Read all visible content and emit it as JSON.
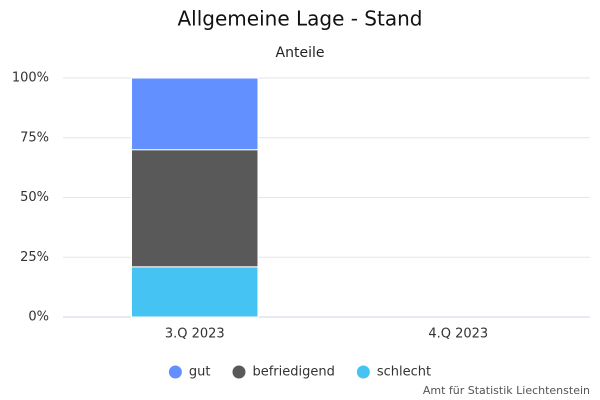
{
  "chart_data": {
    "type": "stacked_bar",
    "title": "Allgemeine Lage - Stand",
    "subtitle": "Anteile",
    "categories": [
      "3.Q 2023",
      "4.Q 2023"
    ],
    "series": [
      {
        "name": "gut",
        "color": "#6291ff",
        "values": [
          30,
          null
        ]
      },
      {
        "name": "befriedigend",
        "color": "#595959",
        "values": [
          49,
          null
        ]
      },
      {
        "name": "schlecht",
        "color": "#45c3f2",
        "values": [
          21,
          null
        ]
      }
    ],
    "stack_order": "bottom-up-reversed",
    "ylim": [
      0,
      100
    ],
    "yticks": [
      {
        "value": 0,
        "label": "0%"
      },
      {
        "value": 25,
        "label": "25%"
      },
      {
        "value": 50,
        "label": "50%"
      },
      {
        "value": 75,
        "label": "75%"
      },
      {
        "value": 100,
        "label": "100%"
      }
    ],
    "grid": true,
    "legend": "bottom",
    "source": "Amt für Statistik Liechtenstein"
  }
}
